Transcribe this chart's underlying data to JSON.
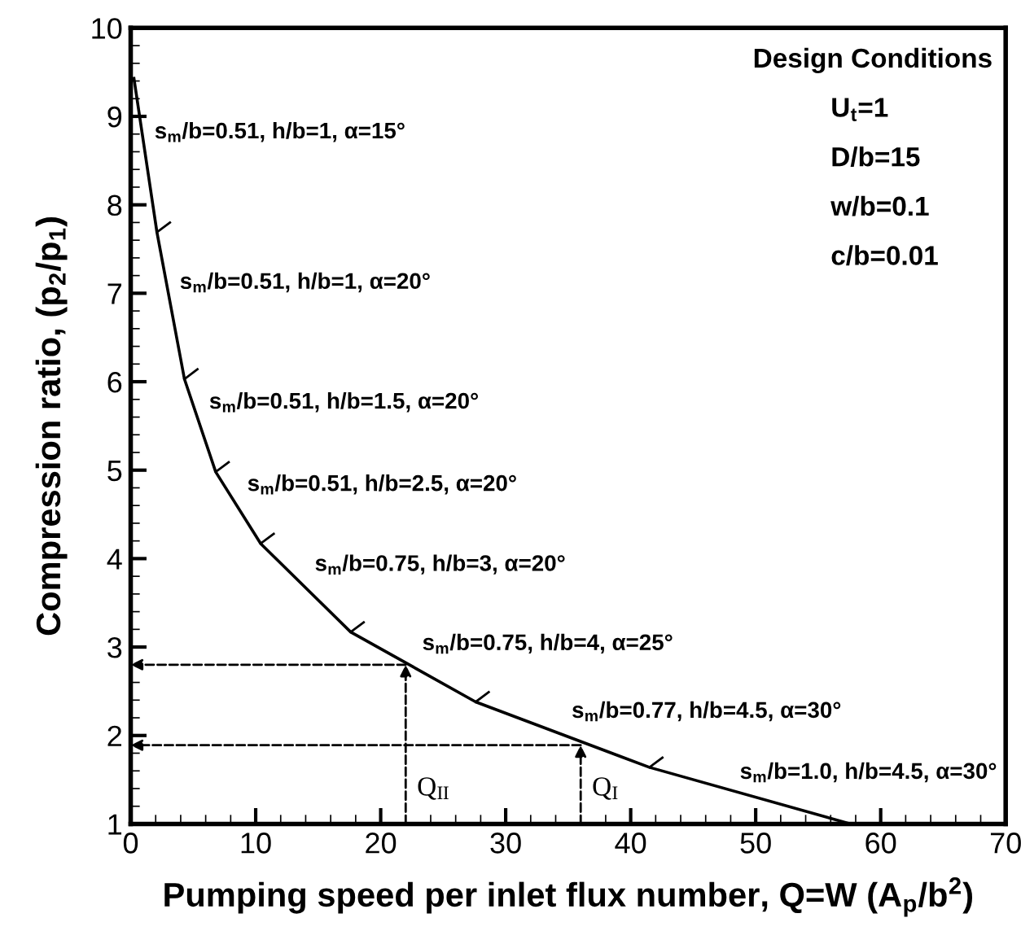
{
  "chart_data": {
    "type": "line",
    "xlabel": "Pumping speed per inlet flux number, Q=W (A$_{p}$/b$^{2}$)",
    "ylabel": "Compression ratio, (p$_{2}$/p$_{1}$)",
    "x": [
      0.26,
      2.1,
      4.3,
      6.8,
      10.4,
      17.6,
      27.6,
      41.5,
      57.6
    ],
    "series": [
      {
        "color": "#000000",
        "values": [
          9.43,
          7.69,
          6.03,
          4.98,
          4.17,
          3.17,
          2.38,
          1.64,
          1.0
        ]
      }
    ],
    "xlim": [
      0,
      70
    ],
    "xticks": [
      0,
      10,
      20,
      30,
      40,
      50,
      60,
      70
    ],
    "ylim": [
      1,
      10
    ],
    "yticks": [
      1,
      2,
      3,
      4,
      5,
      6,
      7,
      8,
      9,
      10
    ],
    "grid": false,
    "marker": "none",
    "line_style": "solid",
    "annotations": [
      "s$_{m}$/b=0.51, h/b=1, α=15°",
      "s$_{m}$/b=0.51, h/b=1, α=20°",
      "s$_{m}$/b=0.51, h/b=1.5, α=20°",
      "s$_{m}$/b=0.51, h/b=2.5, α=20°",
      "s$_{m}$/b=0.75, h/b=3, α=20°",
      "s$_{m}$/b=0.75, h/b=4, α=25°",
      "s$_{m}$/b=0.77, h/b=4.5, α=30°",
      "s$_{m}$/b=1.0, h/b=4.5, α=30°",
      "Design Conditions",
      "U$_{t}$=1",
      "D/b=15",
      "w/b=0.1",
      "c/b=0.01",
      {
        "text": "Q$_{II}$",
        "x": 22,
        "y": 2.8
      },
      {
        "text": "Q$_{I}$",
        "x": 36,
        "y": 1.89
      }
    ]
  }
}
